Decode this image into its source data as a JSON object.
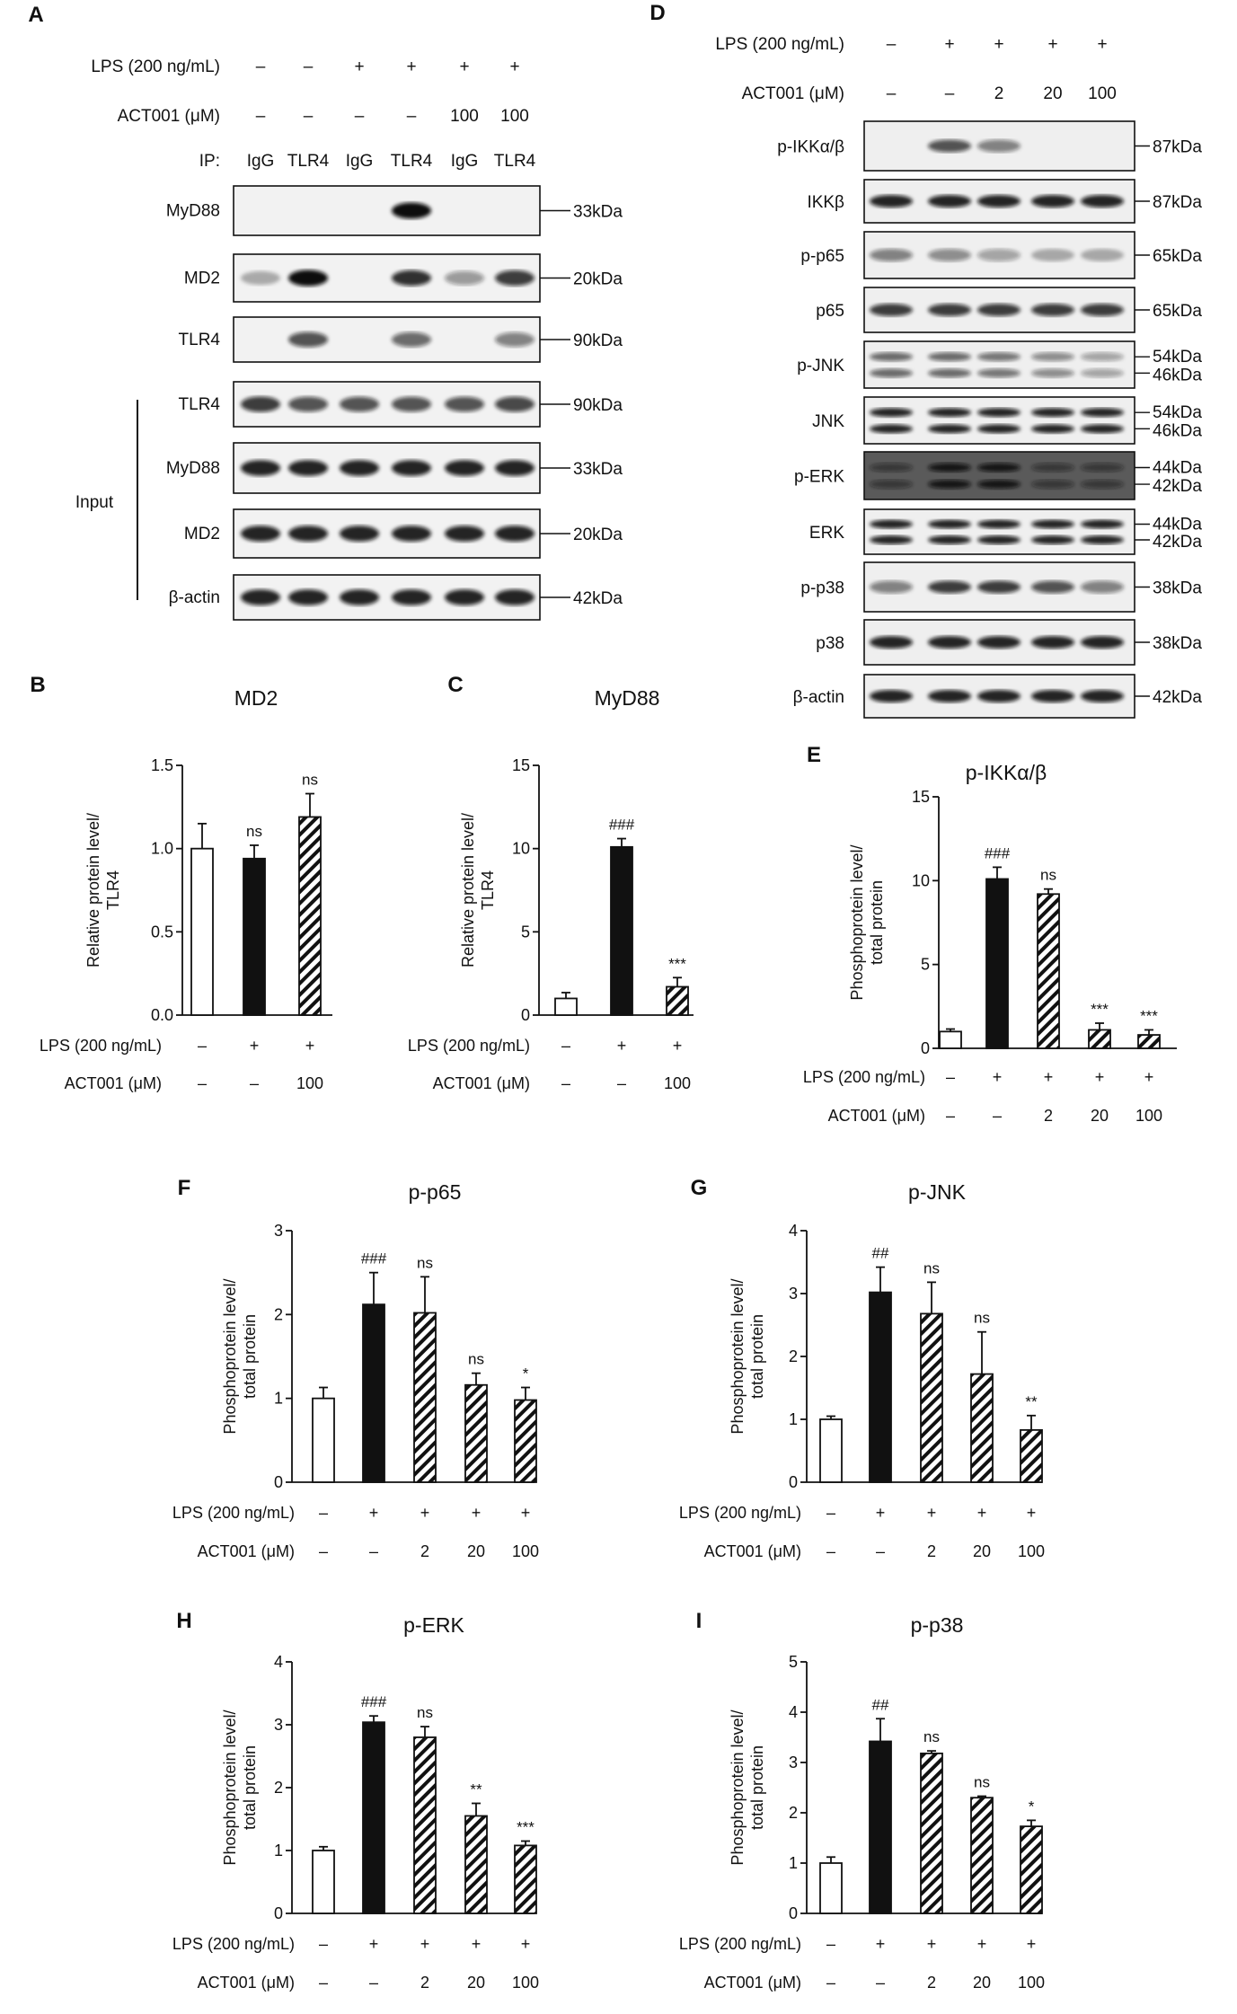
{
  "panels": {
    "A": {
      "letter": "A",
      "lps_label": "LPS (200 ng/mL)",
      "act_label": "ACT001 (μM)",
      "ip_label": "IP:",
      "lps": [
        "–",
        "–",
        "+",
        "+",
        "+",
        "+"
      ],
      "act": [
        "–",
        "–",
        "–",
        "–",
        "100",
        "100"
      ],
      "ip": [
        "IgG",
        "TLR4",
        "IgG",
        "TLR4",
        "IgG",
        "TLR4"
      ],
      "input_label": "Input",
      "blots": [
        {
          "label": "MyD88",
          "kda": "33kDa"
        },
        {
          "label": "MD2",
          "kda": "20kDa"
        },
        {
          "label": "TLR4",
          "kda": "90kDa"
        },
        {
          "label": "TLR4",
          "kda": "90kDa"
        },
        {
          "label": "MyD88",
          "kda": "33kDa"
        },
        {
          "label": "MD2",
          "kda": "20kDa"
        },
        {
          "label": "β-actin",
          "kda": "42kDa"
        }
      ]
    },
    "D": {
      "letter": "D",
      "lps_label": "LPS (200 ng/mL)",
      "act_label": "ACT001 (μM)",
      "lps": [
        "–",
        "+",
        "+",
        "+",
        "+"
      ],
      "act": [
        "–",
        "–",
        "2",
        "20",
        "100"
      ],
      "blots": [
        {
          "label": "p-IKKα/β",
          "kda": [
            "87kDa"
          ]
        },
        {
          "label": "IKKβ",
          "kda": [
            "87kDa"
          ]
        },
        {
          "label": "p-p65",
          "kda": [
            "65kDa"
          ]
        },
        {
          "label": "p65",
          "kda": [
            "65kDa"
          ]
        },
        {
          "label": "p-JNK",
          "kda": [
            "54kDa",
            "46kDa"
          ]
        },
        {
          "label": "JNK",
          "kda": [
            "54kDa",
            "46kDa"
          ]
        },
        {
          "label": "p-ERK",
          "kda": [
            "44kDa",
            "42kDa"
          ]
        },
        {
          "label": "ERK",
          "kda": [
            "44kDa",
            "42kDa"
          ]
        },
        {
          "label": "p-p38",
          "kda": [
            "38kDa"
          ]
        },
        {
          "label": "p38",
          "kda": [
            "38kDa"
          ]
        },
        {
          "label": "β-actin",
          "kda": [
            "42kDa"
          ]
        }
      ]
    }
  },
  "chart_data": [
    {
      "panel": "B",
      "type": "bar",
      "title": "MD2",
      "ylabel": [
        "Relative protein level/",
        "TLR4"
      ],
      "ylim": [
        0,
        1.5
      ],
      "yticks": [
        "0.0",
        "0.5",
        "1.0",
        "1.5"
      ],
      "values": [
        1.0,
        0.94,
        1.19
      ],
      "errors": [
        0.15,
        0.08,
        0.14
      ],
      "annotations": [
        "",
        "ns",
        "ns"
      ],
      "fills": [
        "white",
        "black",
        "hatch"
      ],
      "lps_label": "LPS (200 ng/mL)",
      "act_label": "ACT001 (μM)",
      "lps": [
        "–",
        "+",
        "+"
      ],
      "act": [
        "–",
        "–",
        "100"
      ]
    },
    {
      "panel": "C",
      "type": "bar",
      "title": "MyD88",
      "ylabel": [
        "Relative protein level/",
        "TLR4"
      ],
      "ylim": [
        0,
        15
      ],
      "yticks": [
        "0",
        "5",
        "10",
        "15"
      ],
      "values": [
        1.0,
        10.1,
        1.7
      ],
      "errors": [
        0.35,
        0.5,
        0.55
      ],
      "annotations": [
        "",
        "###",
        "***"
      ],
      "fills": [
        "white",
        "black",
        "hatch"
      ],
      "lps_label": "LPS (200 ng/mL)",
      "act_label": "ACT001 (μM)",
      "lps": [
        "–",
        "+",
        "+"
      ],
      "act": [
        "–",
        "–",
        "100"
      ]
    },
    {
      "panel": "E",
      "type": "bar",
      "title": "p-IKKα/β",
      "ylabel": [
        "Phosphoprotein level/",
        "total protein"
      ],
      "ylim": [
        0,
        15
      ],
      "yticks": [
        "0",
        "5",
        "10",
        "15"
      ],
      "values": [
        1.0,
        10.1,
        9.2,
        1.1,
        0.8
      ],
      "errors": [
        0.15,
        0.7,
        0.3,
        0.4,
        0.3
      ],
      "annotations": [
        "",
        "###",
        "ns",
        "***",
        "***"
      ],
      "fills": [
        "white",
        "black",
        "hatch",
        "hatch",
        "hatch"
      ],
      "lps_label": "LPS (200 ng/mL)",
      "act_label": "ACT001 (μM)",
      "lps": [
        "–",
        "+",
        "+",
        "+",
        "+"
      ],
      "act": [
        "–",
        "–",
        "2",
        "20",
        "100"
      ]
    },
    {
      "panel": "F",
      "type": "bar",
      "title": "p-p65",
      "ylabel": [
        "Phosphoprotein level/",
        "total protein"
      ],
      "ylim": [
        0,
        3
      ],
      "yticks": [
        "0",
        "1",
        "2",
        "3"
      ],
      "values": [
        1.0,
        2.12,
        2.02,
        1.16,
        0.98
      ],
      "errors": [
        0.13,
        0.38,
        0.43,
        0.14,
        0.15
      ],
      "annotations": [
        "",
        "###",
        "ns",
        "ns",
        "*"
      ],
      "fills": [
        "white",
        "black",
        "hatch",
        "hatch",
        "hatch"
      ],
      "lps_label": "LPS (200 ng/mL)",
      "act_label": "ACT001 (μM)",
      "lps": [
        "–",
        "+",
        "+",
        "+",
        "+"
      ],
      "act": [
        "–",
        "–",
        "2",
        "20",
        "100"
      ]
    },
    {
      "panel": "G",
      "type": "bar",
      "title": "p-JNK",
      "ylabel": [
        "Phosphoprotein level/",
        "total protein"
      ],
      "ylim": [
        0,
        4
      ],
      "yticks": [
        "0",
        "1",
        "2",
        "3",
        "4"
      ],
      "values": [
        1.0,
        3.02,
        2.68,
        1.72,
        0.83
      ],
      "errors": [
        0.05,
        0.4,
        0.5,
        0.67,
        0.23
      ],
      "annotations": [
        "",
        "##",
        "ns",
        "ns",
        "**"
      ],
      "fills": [
        "white",
        "black",
        "hatch",
        "hatch",
        "hatch"
      ],
      "lps_label": "LPS (200 ng/mL)",
      "act_label": "ACT001 (μM)",
      "lps": [
        "–",
        "+",
        "+",
        "+",
        "+"
      ],
      "act": [
        "–",
        "–",
        "2",
        "20",
        "100"
      ]
    },
    {
      "panel": "H",
      "type": "bar",
      "title": "p-ERK",
      "ylabel": [
        "Phosphoprotein level/",
        "total protein"
      ],
      "ylim": [
        0,
        4
      ],
      "yticks": [
        "0",
        "1",
        "2",
        "3",
        "4"
      ],
      "values": [
        1.0,
        3.04,
        2.8,
        1.55,
        1.08
      ],
      "errors": [
        0.06,
        0.1,
        0.17,
        0.2,
        0.07
      ],
      "annotations": [
        "",
        "###",
        "ns",
        "**",
        "***"
      ],
      "fills": [
        "white",
        "black",
        "hatch",
        "hatch",
        "hatch"
      ],
      "lps_label": "LPS (200 ng/mL)",
      "act_label": "ACT001 (μM)",
      "lps": [
        "–",
        "+",
        "+",
        "+",
        "+"
      ],
      "act": [
        "–",
        "–",
        "2",
        "20",
        "100"
      ]
    },
    {
      "panel": "I",
      "type": "bar",
      "title": "p-p38",
      "ylabel": [
        "Phosphoprotein level/",
        "total protein"
      ],
      "ylim": [
        0,
        5
      ],
      "yticks": [
        "0",
        "1",
        "2",
        "3",
        "4",
        "5"
      ],
      "values": [
        1.0,
        3.42,
        3.18,
        2.3,
        1.73
      ],
      "errors": [
        0.12,
        0.45,
        0.05,
        0.03,
        0.12
      ],
      "annotations": [
        "",
        "##",
        "ns",
        "ns",
        "*"
      ],
      "fills": [
        "white",
        "black",
        "hatch",
        "hatch",
        "hatch"
      ],
      "lps_label": "LPS (200 ng/mL)",
      "act_label": "ACT001 (μM)",
      "lps": [
        "–",
        "+",
        "+",
        "+",
        "+"
      ],
      "act": [
        "–",
        "–",
        "2",
        "20",
        "100"
      ]
    }
  ]
}
